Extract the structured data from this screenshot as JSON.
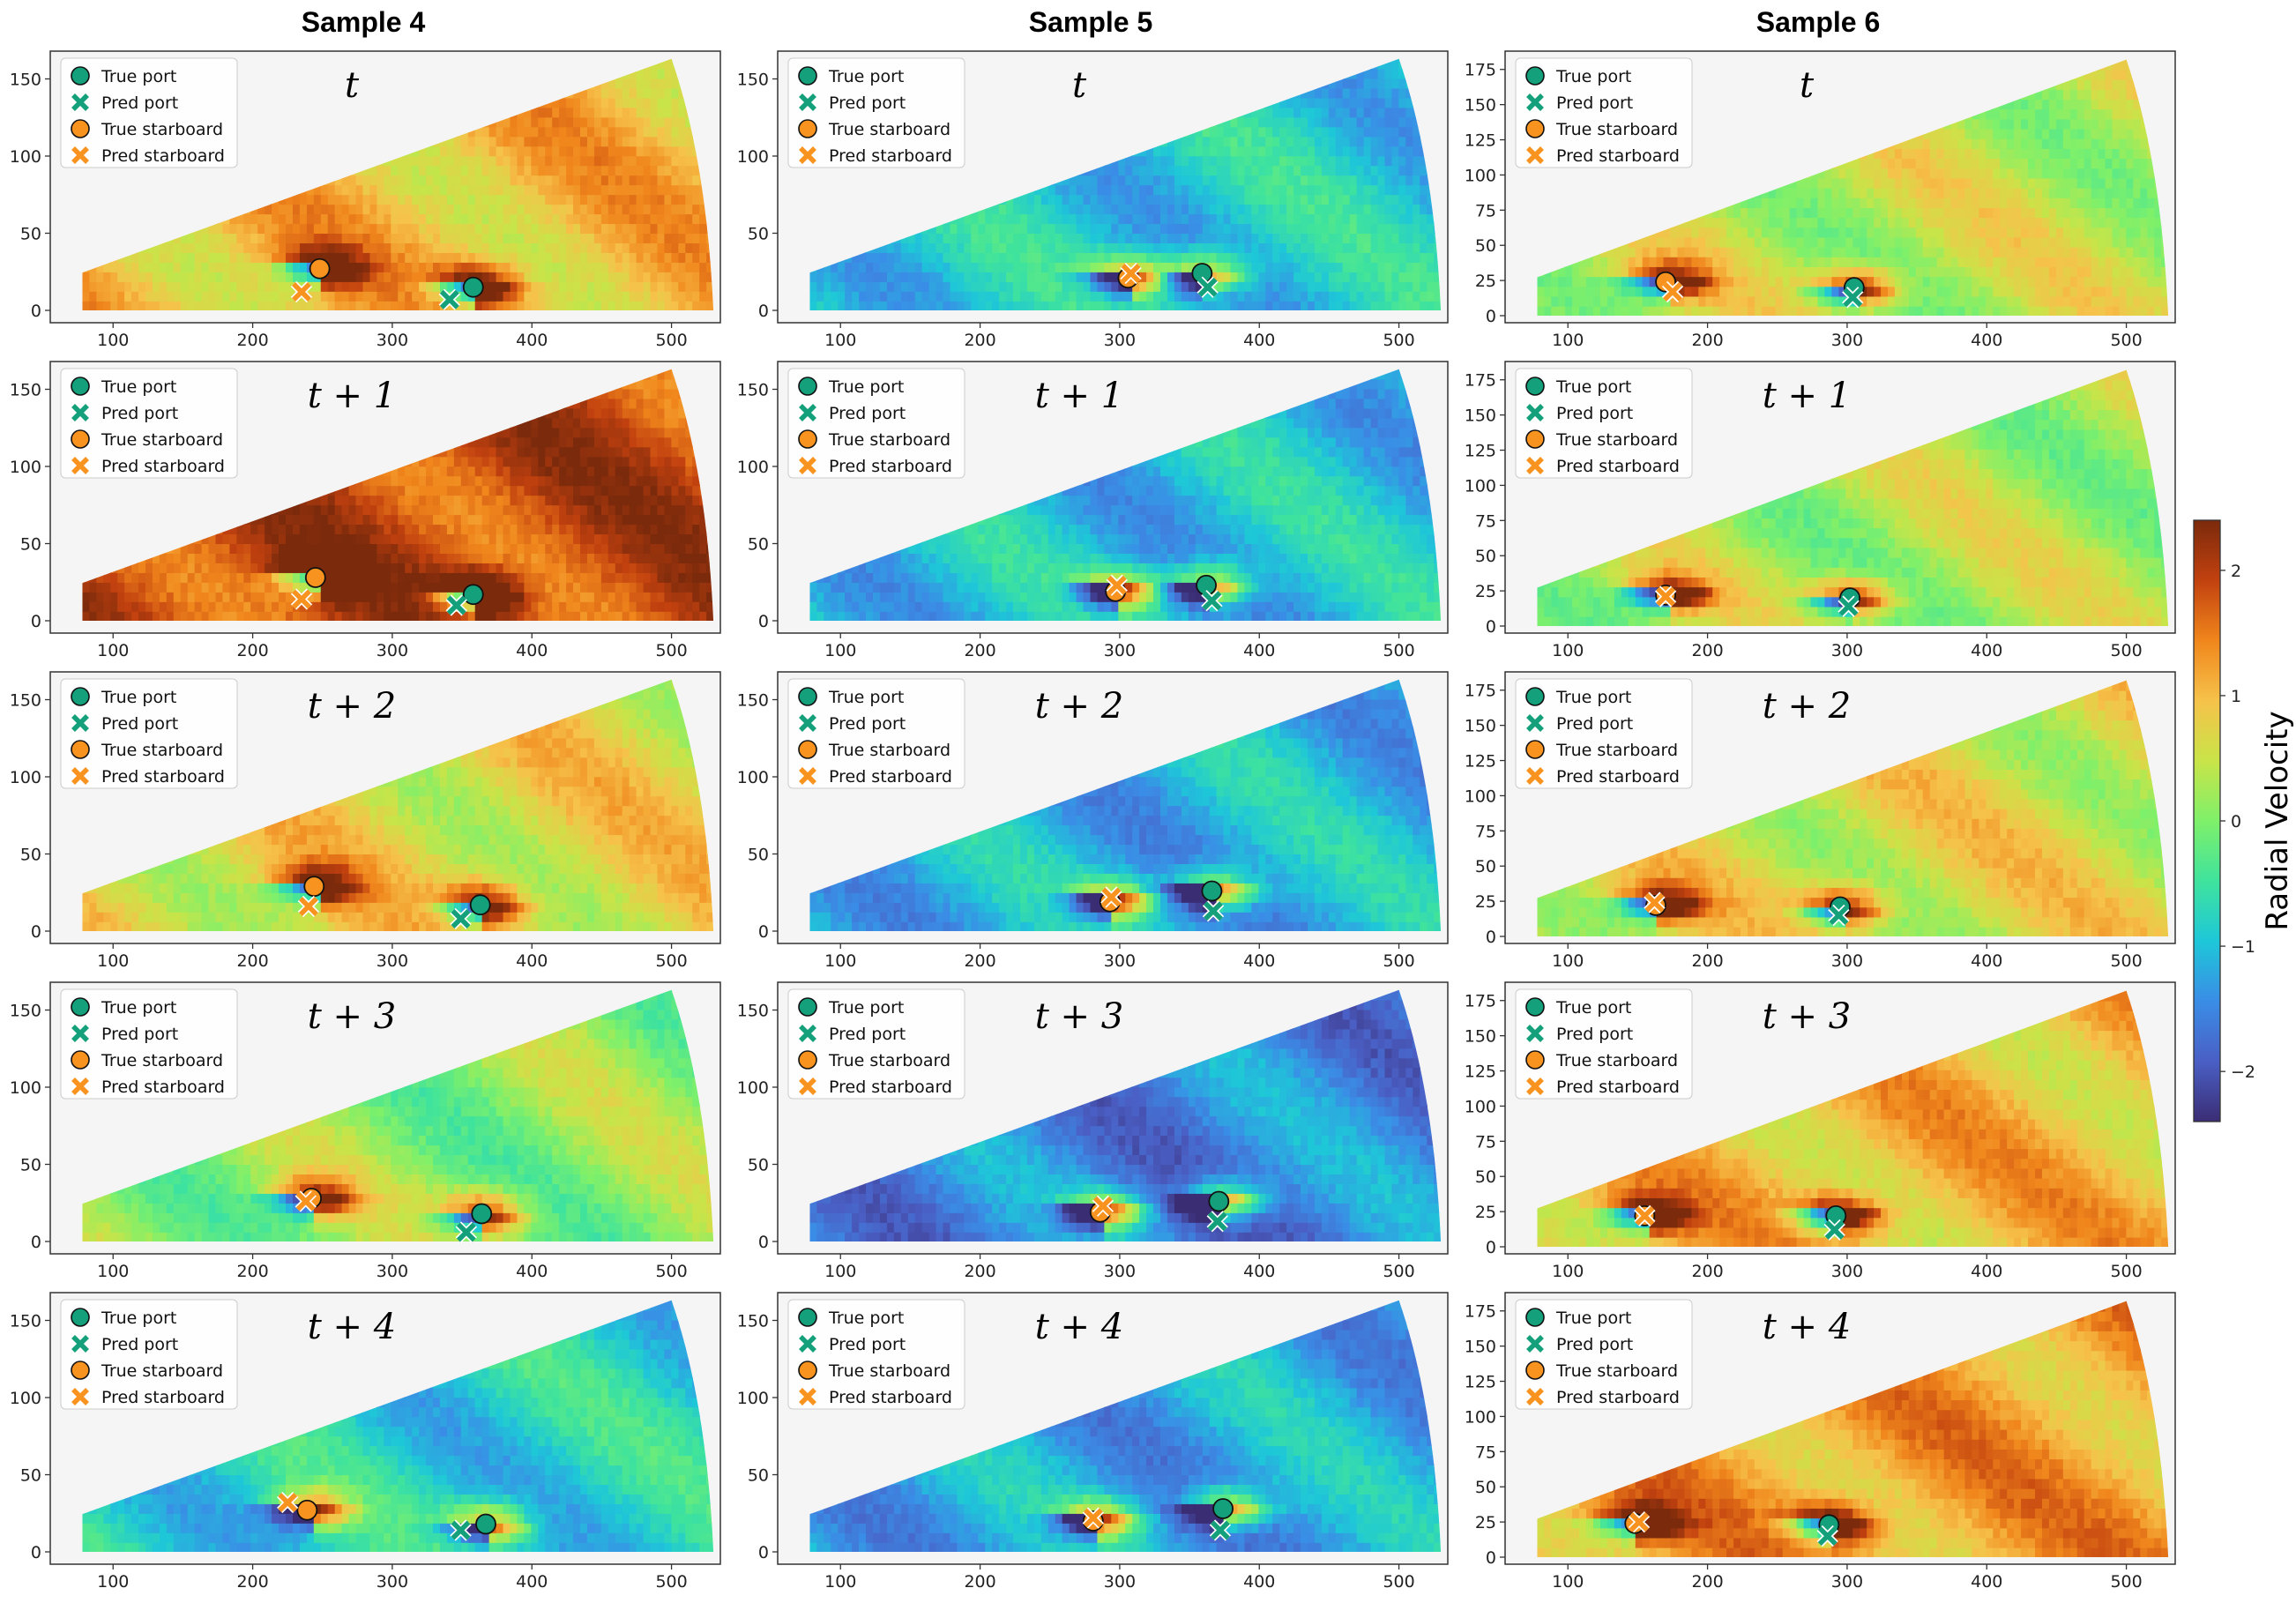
{
  "chart_data": {
    "type": "heatmap",
    "columns": [
      "Sample 4",
      "Sample 5",
      "Sample 6"
    ],
    "time_labels": [
      "t",
      "t + 1",
      "t + 2",
      "t + 3",
      "t + 4"
    ],
    "legend": [
      "True port",
      "Pred port",
      "True starboard",
      "Pred starboard"
    ],
    "colors": {
      "port": "#13a07a",
      "starboard": "#f7931e",
      "panel_bg": "#f5f5f5"
    },
    "xticks": [
      "100",
      "200",
      "300",
      "400",
      "500"
    ],
    "xlim": [
      55,
      535
    ],
    "colorbar": {
      "label": "Radial Velocity",
      "ticks": [
        "2",
        "1",
        "0",
        "−1",
        "−2"
      ],
      "tick_values": [
        2,
        1,
        0,
        -1,
        -2
      ],
      "range": [
        -2.4,
        2.4
      ],
      "stops": [
        "#7b2a0c",
        "#c2410f",
        "#f0861c",
        "#f6c24a",
        "#c9e448",
        "#7ff06a",
        "#3fe39d",
        "#1ec7d8",
        "#3a8de6",
        "#4a5fc5",
        "#3b2d74"
      ]
    },
    "samples": [
      {
        "name": "Sample 4",
        "yticks": [
          "0",
          "50",
          "100",
          "150"
        ],
        "ylim": [
          -8,
          168
        ],
        "ymax": 163,
        "frames": [
          {
            "bg": 1.0,
            "true_port": [
              358,
              15
            ],
            "pred_port": [
              341,
              7
            ],
            "true_starboard": [
              248,
              27
            ],
            "pred_starboard": [
              235,
              12
            ]
          },
          {
            "bg": 1.9,
            "true_port": [
              358,
              17
            ],
            "pred_port": [
              346,
              10
            ],
            "true_starboard": [
              245,
              28
            ],
            "pred_starboard": [
              235,
              14
            ]
          },
          {
            "bg": 0.7,
            "true_port": [
              363,
              17
            ],
            "pred_port": [
              349,
              8
            ],
            "true_starboard": [
              244,
              29
            ],
            "pred_starboard": [
              240,
              16
            ]
          },
          {
            "bg": 0.1,
            "true_port": [
              364,
              18
            ],
            "pred_port": [
              353,
              6
            ],
            "true_starboard": [
              242,
              28
            ],
            "pred_starboard": [
              238,
              26
            ]
          },
          {
            "bg": -0.8,
            "true_port": [
              367,
              18
            ],
            "pred_port": [
              349,
              14
            ],
            "true_starboard": [
              239,
              27
            ],
            "pred_starboard": [
              225,
              32
            ]
          }
        ]
      },
      {
        "name": "Sample 5",
        "yticks": [
          "0",
          "50",
          "100",
          "150"
        ],
        "ylim": [
          -8,
          168
        ],
        "ymax": 163,
        "frames": [
          {
            "bg": -0.9,
            "true_port": [
              359,
              24
            ],
            "pred_port": [
              363,
              15
            ],
            "true_starboard": [
              306,
              21
            ],
            "pred_starboard": [
              308,
              24
            ]
          },
          {
            "bg": -1.0,
            "true_port": [
              362,
              23
            ],
            "pred_port": [
              366,
              13
            ],
            "true_starboard": [
              297,
              19
            ],
            "pred_starboard": [
              298,
              23
            ]
          },
          {
            "bg": -1.1,
            "true_port": [
              366,
              26
            ],
            "pred_port": [
              367,
              13
            ],
            "true_starboard": [
              293,
              19
            ],
            "pred_starboard": [
              294,
              22
            ]
          },
          {
            "bg": -1.5,
            "true_port": [
              371,
              26
            ],
            "pred_port": [
              370,
              13
            ],
            "true_starboard": [
              286,
              19
            ],
            "pred_starboard": [
              288,
              23
            ]
          },
          {
            "bg": -1.2,
            "true_port": [
              374,
              28
            ],
            "pred_port": [
              372,
              14
            ],
            "true_starboard": [
              281,
              20
            ],
            "pred_starboard": [
              281,
              22
            ]
          }
        ]
      },
      {
        "name": "Sample 6",
        "yticks": [
          "0",
          "25",
          "50",
          "75",
          "100",
          "125",
          "150",
          "175"
        ],
        "ylim": [
          -5,
          188
        ],
        "ymax": 182,
        "frames": [
          {
            "bg": 0.4,
            "true_port": [
              305,
              20
            ],
            "pred_port": [
              304,
              13
            ],
            "true_starboard": [
              170,
              24
            ],
            "pred_starboard": [
              175,
              17
            ]
          },
          {
            "bg": 0.3,
            "true_port": [
              302,
              20
            ],
            "pred_port": [
              301,
              14
            ],
            "true_starboard": [
              170,
              22
            ],
            "pred_starboard": [
              170,
              21
            ]
          },
          {
            "bg": 0.6,
            "true_port": [
              295,
              21
            ],
            "pred_port": [
              294,
              15
            ],
            "true_starboard": [
              163,
              22
            ],
            "pred_starboard": [
              162,
              24
            ]
          },
          {
            "bg": 1.0,
            "true_port": [
              292,
              22
            ],
            "pred_port": [
              291,
              12
            ],
            "true_starboard": [
              155,
              22
            ],
            "pred_starboard": [
              155,
              22
            ]
          },
          {
            "bg": 1.2,
            "true_port": [
              287,
              23
            ],
            "pred_port": [
              286,
              15
            ],
            "true_starboard": [
              148,
              24
            ],
            "pred_starboard": [
              151,
              25
            ]
          }
        ]
      }
    ]
  }
}
